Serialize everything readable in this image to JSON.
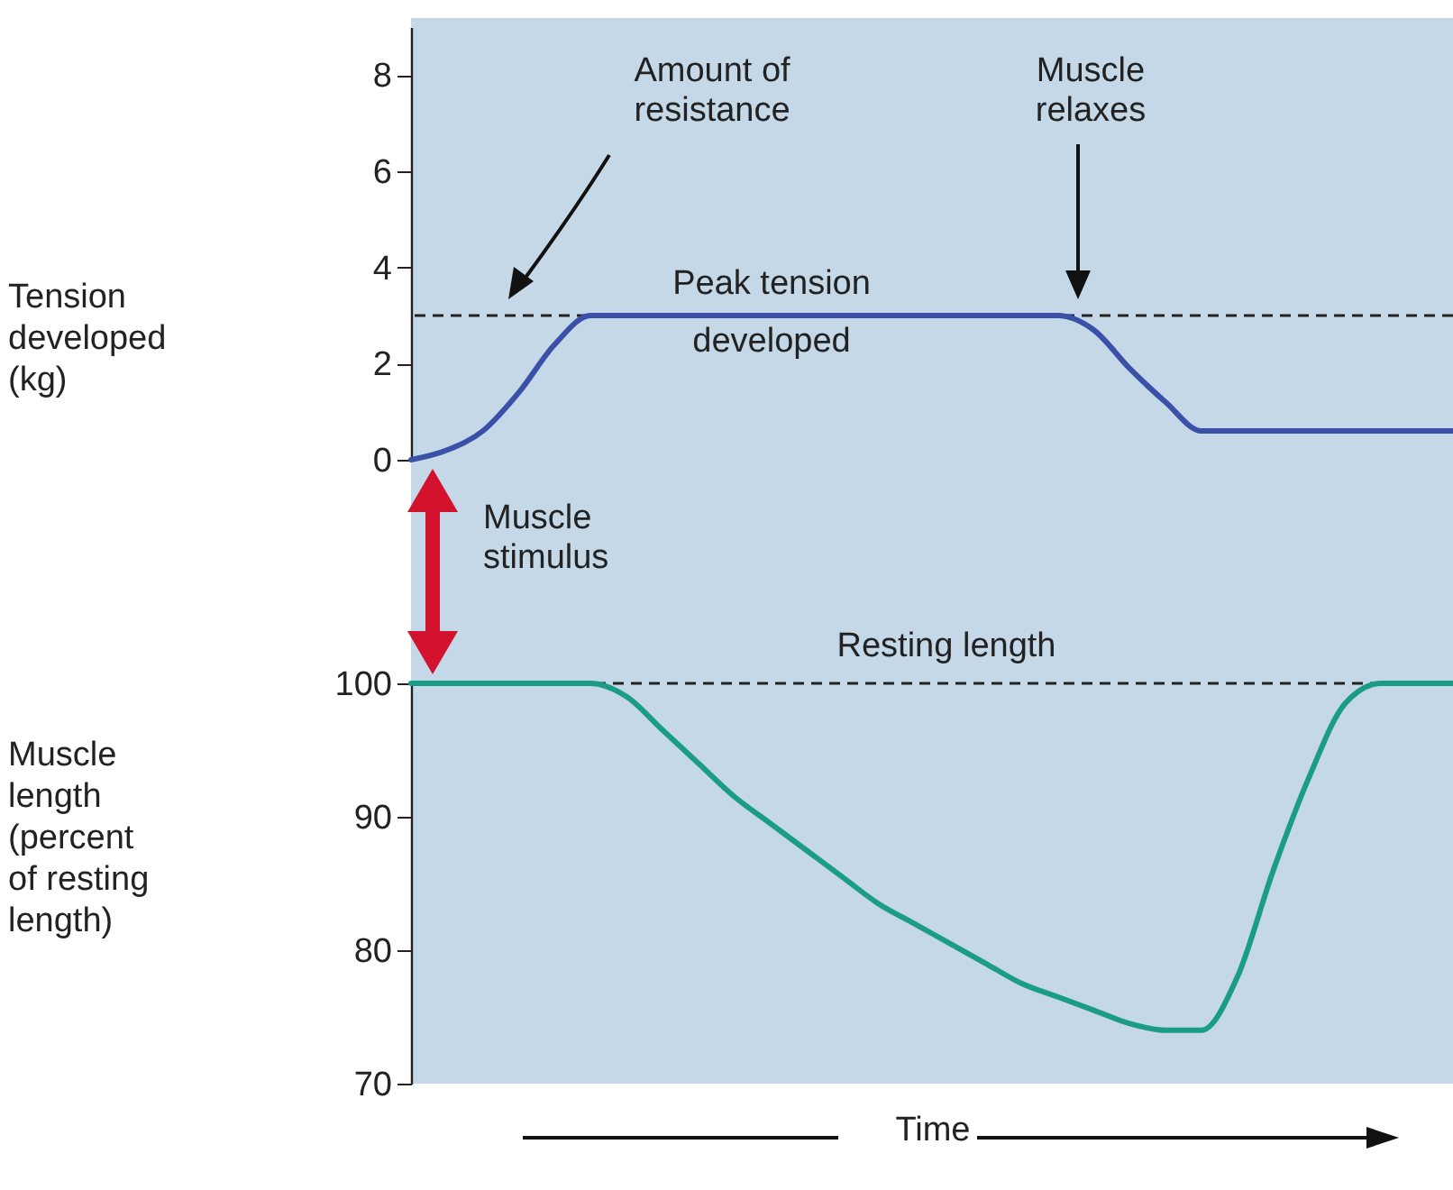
{
  "chart_data": [
    {
      "type": "line",
      "ylabel": "Tension developed (kg)",
      "categories": [
        null,
        null,
        null,
        null,
        null,
        null,
        null,
        null,
        null,
        null,
        null,
        null,
        null,
        null,
        null,
        null,
        null,
        null,
        null,
        null,
        null,
        null,
        null,
        null,
        null,
        null,
        null,
        null,
        null,
        null
      ],
      "series": [
        {
          "color": "#3b50a8",
          "values": [
            0,
            0.2,
            0.6,
            1.4,
            2.4,
            3,
            3,
            3,
            3,
            3,
            3,
            3,
            3,
            3,
            3,
            3,
            3,
            3,
            3,
            2.7,
            1.9,
            1.2,
            0.6,
            0.6,
            0.6,
            0.6,
            0.6,
            0.6,
            0.6,
            0.6
          ]
        }
      ],
      "ylim": [
        0,
        9
      ],
      "yticks": [
        0,
        2,
        4,
        6,
        8
      ],
      "tick_labels": "y",
      "ref_lines": [
        {
          "axis": "y",
          "value": 3,
          "label": "Amount of resistance",
          "line_style": "dashed",
          "color": "#222222"
        }
      ],
      "annotations": [
        "Peak tension developed",
        "Muscle relaxes",
        "Muscle stimulus"
      ]
    },
    {
      "type": "line",
      "xlabel": "Time",
      "ylabel": "Muscle length (percent of resting length)",
      "categories": [
        null,
        null,
        null,
        null,
        null,
        null,
        null,
        null,
        null,
        null,
        null,
        null,
        null,
        null,
        null,
        null,
        null,
        null,
        null,
        null,
        null,
        null,
        null,
        null,
        null,
        null,
        null,
        null,
        null,
        null
      ],
      "series": [
        {
          "color": "#1a9c86",
          "values": [
            100,
            100,
            100,
            100,
            100,
            100,
            99,
            96.5,
            94,
            91.5,
            89.5,
            87.5,
            85.5,
            83.5,
            82,
            80.5,
            79,
            77.5,
            76.5,
            75.5,
            74.5,
            74,
            74,
            78,
            86,
            93,
            98.5,
            100,
            100,
            100
          ]
        }
      ],
      "ylim": [
        70,
        100
      ],
      "yticks": [
        70,
        80,
        90,
        100
      ],
      "tick_labels": "y",
      "ref_lines": [
        {
          "axis": "y",
          "value": 100,
          "label": "Resting length",
          "line_style": "dashed",
          "color": "#222222"
        }
      ]
    }
  ]
}
